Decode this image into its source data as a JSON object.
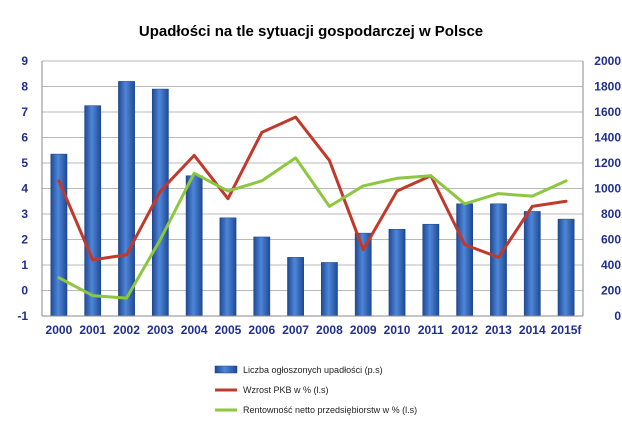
{
  "chart_data": {
    "type": "bar+line",
    "title": "Upadłości na tle sytuacji gospodarczej w Polsce",
    "categories": [
      "2000",
      "2001",
      "2002",
      "2003",
      "2004",
      "2005",
      "2006",
      "2007",
      "2008",
      "2009",
      "2010",
      "2011",
      "2012",
      "2013",
      "2014",
      "2015f"
    ],
    "left_axis": {
      "min": -1,
      "max": 9,
      "ticks": [
        -1,
        0,
        1,
        2,
        3,
        4,
        5,
        6,
        7,
        8,
        9
      ],
      "labels": [
        "-1",
        "0",
        "1",
        "2",
        "3",
        "4",
        "5",
        "6",
        "7",
        "8",
        "9"
      ]
    },
    "right_axis": {
      "min": 0,
      "max": 2000,
      "ticks": [
        0,
        200,
        400,
        600,
        800,
        1000,
        1200,
        1400,
        1600,
        1800,
        2000
      ],
      "labels": [
        "0",
        "200",
        "400",
        "600",
        "800",
        "1000",
        "1200",
        "1400",
        "1600",
        "1800",
        "2000"
      ]
    },
    "gridlines": true,
    "legend_position": "bottom",
    "series": [
      {
        "name": "Liczba ogłoszonych upadłości (p.s)",
        "type": "bar",
        "axis": "right",
        "color": "#2e5fb3",
        "values": [
          1270,
          1650,
          1840,
          1780,
          1100,
          770,
          620,
          460,
          420,
          650,
          680,
          720,
          880,
          880,
          820,
          760
        ]
      },
      {
        "name": "Wzrost PKB w % (l.s)",
        "type": "line",
        "axis": "left",
        "color": "#c0392b",
        "values": [
          4.3,
          1.2,
          1.4,
          3.9,
          5.3,
          3.6,
          6.2,
          6.8,
          5.1,
          1.6,
          3.9,
          4.5,
          1.8,
          1.3,
          3.3,
          3.5
        ]
      },
      {
        "name": "Rentowność netto przedsiębiorstw w % (l.s)",
        "type": "line",
        "axis": "left",
        "color": "#8dc63f",
        "values": [
          0.5,
          -0.2,
          -0.3,
          2.0,
          4.6,
          3.9,
          4.3,
          5.2,
          3.3,
          4.1,
          4.4,
          4.5,
          3.4,
          3.8,
          3.7,
          4.3
        ]
      }
    ]
  }
}
